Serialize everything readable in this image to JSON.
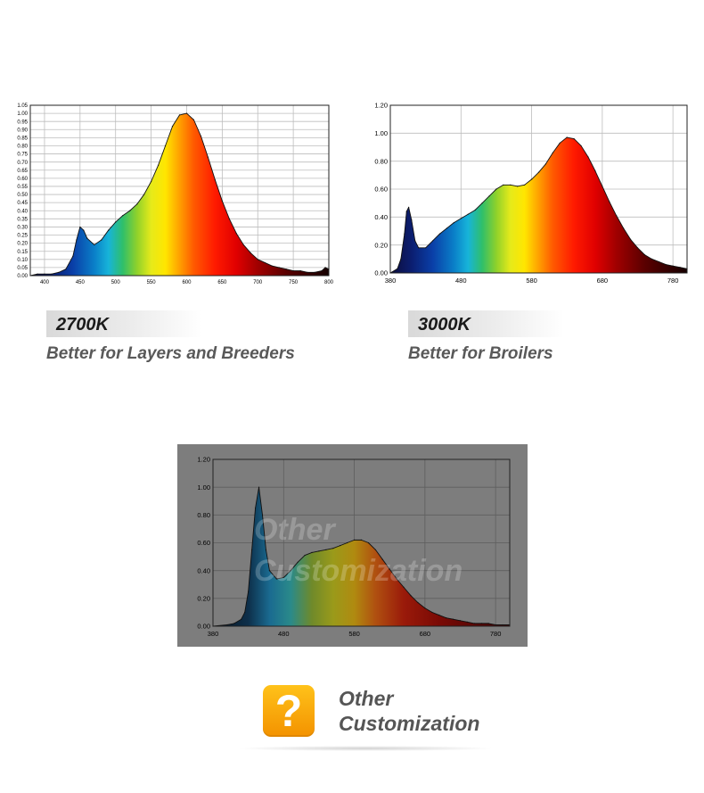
{
  "chart_data": [
    {
      "type": "area",
      "title": "",
      "xlabel": "",
      "ylabel": "",
      "xlim": [
        380,
        800
      ],
      "ylim": [
        0,
        1.05
      ],
      "xticks": [
        400,
        450,
        500,
        550,
        600,
        650,
        700,
        750,
        800
      ],
      "yticks": [
        0.0,
        0.05,
        0.1,
        0.15,
        0.2,
        0.25,
        0.3,
        0.35,
        0.4,
        0.45,
        0.5,
        0.55,
        0.6,
        0.65,
        0.7,
        0.75,
        0.8,
        0.85,
        0.9,
        0.95,
        1.0,
        1.05
      ],
      "ytick_decimals": 2,
      "grid": true,
      "x": [
        380,
        390,
        400,
        410,
        420,
        430,
        440,
        445,
        450,
        455,
        460,
        470,
        480,
        490,
        500,
        510,
        520,
        530,
        540,
        550,
        560,
        570,
        580,
        590,
        600,
        610,
        620,
        630,
        640,
        650,
        660,
        670,
        680,
        690,
        700,
        710,
        720,
        730,
        740,
        750,
        760,
        770,
        780,
        790,
        795,
        800
      ],
      "y": [
        0.0,
        0.01,
        0.01,
        0.01,
        0.02,
        0.04,
        0.12,
        0.22,
        0.3,
        0.28,
        0.23,
        0.19,
        0.22,
        0.28,
        0.33,
        0.37,
        0.4,
        0.44,
        0.5,
        0.58,
        0.68,
        0.8,
        0.92,
        0.99,
        1.0,
        0.96,
        0.86,
        0.73,
        0.59,
        0.46,
        0.35,
        0.26,
        0.19,
        0.14,
        0.1,
        0.08,
        0.06,
        0.05,
        0.04,
        0.03,
        0.03,
        0.02,
        0.02,
        0.03,
        0.05,
        0.04
      ],
      "background": "#ffffff",
      "grid_color": "#bdbdbd",
      "tick_color": "#000000"
    },
    {
      "type": "area",
      "title": "",
      "xlabel": "",
      "ylabel": "",
      "xlim": [
        380,
        800
      ],
      "ylim": [
        0,
        1.2
      ],
      "xticks": [
        380,
        480,
        580,
        680,
        780
      ],
      "yticks": [
        0.0,
        0.2,
        0.4,
        0.6,
        0.8,
        1.0,
        1.2
      ],
      "ytick_decimals": 2,
      "grid": true,
      "x": [
        380,
        390,
        395,
        400,
        403,
        406,
        410,
        415,
        420,
        430,
        440,
        450,
        460,
        470,
        480,
        490,
        500,
        510,
        520,
        530,
        540,
        550,
        560,
        570,
        580,
        590,
        600,
        610,
        620,
        630,
        640,
        650,
        660,
        670,
        680,
        690,
        700,
        710,
        720,
        730,
        740,
        750,
        760,
        770,
        780,
        790,
        800
      ],
      "y": [
        0.0,
        0.03,
        0.1,
        0.28,
        0.44,
        0.47,
        0.38,
        0.23,
        0.18,
        0.18,
        0.23,
        0.28,
        0.32,
        0.36,
        0.39,
        0.42,
        0.45,
        0.5,
        0.55,
        0.6,
        0.63,
        0.63,
        0.62,
        0.63,
        0.67,
        0.72,
        0.78,
        0.86,
        0.93,
        0.97,
        0.96,
        0.91,
        0.83,
        0.73,
        0.62,
        0.51,
        0.41,
        0.32,
        0.24,
        0.18,
        0.13,
        0.1,
        0.08,
        0.06,
        0.05,
        0.04,
        0.03
      ],
      "background": "#ffffff",
      "grid_color": "#bdbdbd",
      "tick_color": "#000000"
    },
    {
      "type": "area",
      "title": "",
      "xlabel": "",
      "ylabel": "",
      "xlim": [
        380,
        800
      ],
      "ylim": [
        0,
        1.2
      ],
      "xticks": [
        380,
        480,
        580,
        680,
        780
      ],
      "yticks": [
        0.0,
        0.2,
        0.4,
        0.6,
        0.8,
        1.0,
        1.2
      ],
      "ytick_decimals": 2,
      "grid": true,
      "x": [
        380,
        400,
        410,
        420,
        425,
        430,
        435,
        440,
        445,
        450,
        455,
        460,
        470,
        480,
        490,
        500,
        510,
        520,
        530,
        540,
        550,
        560,
        570,
        580,
        590,
        600,
        610,
        620,
        630,
        640,
        650,
        660,
        670,
        680,
        690,
        700,
        710,
        720,
        730,
        740,
        750,
        760,
        770,
        780,
        790,
        800
      ],
      "y": [
        0.0,
        0.01,
        0.02,
        0.05,
        0.1,
        0.25,
        0.55,
        0.85,
        1.0,
        0.8,
        0.55,
        0.4,
        0.34,
        0.35,
        0.4,
        0.46,
        0.51,
        0.53,
        0.54,
        0.55,
        0.56,
        0.58,
        0.6,
        0.62,
        0.62,
        0.6,
        0.55,
        0.48,
        0.41,
        0.34,
        0.28,
        0.22,
        0.17,
        0.13,
        0.1,
        0.08,
        0.06,
        0.05,
        0.04,
        0.03,
        0.02,
        0.02,
        0.02,
        0.01,
        0.01,
        0.01
      ],
      "background": "#7d7d7d",
      "grid_color": "#5e5e5e",
      "tick_color": "#000000"
    }
  ],
  "labels": {
    "chart1_title": "2700K",
    "chart1_desc": "Better for Layers and Breeders",
    "chart2_title": "3000K",
    "chart2_desc": "Better for Broilers",
    "watermark_line1": "Other",
    "watermark_line2": "Customization"
  },
  "footer": {
    "icon": "question-mark-icon",
    "icon_glyph": "?",
    "icon_color": "#f7a600",
    "line1": "Other",
    "line2": "Customization"
  },
  "spectrum_colors": [
    {
      "nm": 380,
      "color": "#0d0d3a"
    },
    {
      "nm": 410,
      "color": "#0b1e70"
    },
    {
      "nm": 440,
      "color": "#0a3fa8"
    },
    {
      "nm": 470,
      "color": "#0a7fc8"
    },
    {
      "nm": 490,
      "color": "#17b4d9"
    },
    {
      "nm": 510,
      "color": "#2fbf6a"
    },
    {
      "nm": 530,
      "color": "#8fd12b"
    },
    {
      "nm": 550,
      "color": "#e6ea1a"
    },
    {
      "nm": 570,
      "color": "#ffe600"
    },
    {
      "nm": 590,
      "color": "#ffa000"
    },
    {
      "nm": 610,
      "color": "#ff5a00"
    },
    {
      "nm": 640,
      "color": "#ff1a00"
    },
    {
      "nm": 670,
      "color": "#e00000"
    },
    {
      "nm": 700,
      "color": "#a00000"
    },
    {
      "nm": 740,
      "color": "#5a0000"
    },
    {
      "nm": 800,
      "color": "#150000"
    }
  ],
  "spectrum_colors_dim": [
    {
      "nm": 380,
      "color": "#0a1420"
    },
    {
      "nm": 430,
      "color": "#0d2f4a"
    },
    {
      "nm": 460,
      "color": "#1a6a90"
    },
    {
      "nm": 490,
      "color": "#2a8a8a"
    },
    {
      "nm": 520,
      "color": "#6f8a2a"
    },
    {
      "nm": 550,
      "color": "#9a9a1a"
    },
    {
      "nm": 580,
      "color": "#b08a10"
    },
    {
      "nm": 610,
      "color": "#b05010"
    },
    {
      "nm": 650,
      "color": "#9a1a0a"
    },
    {
      "nm": 700,
      "color": "#7a0a05"
    },
    {
      "nm": 800,
      "color": "#3a0505"
    }
  ]
}
